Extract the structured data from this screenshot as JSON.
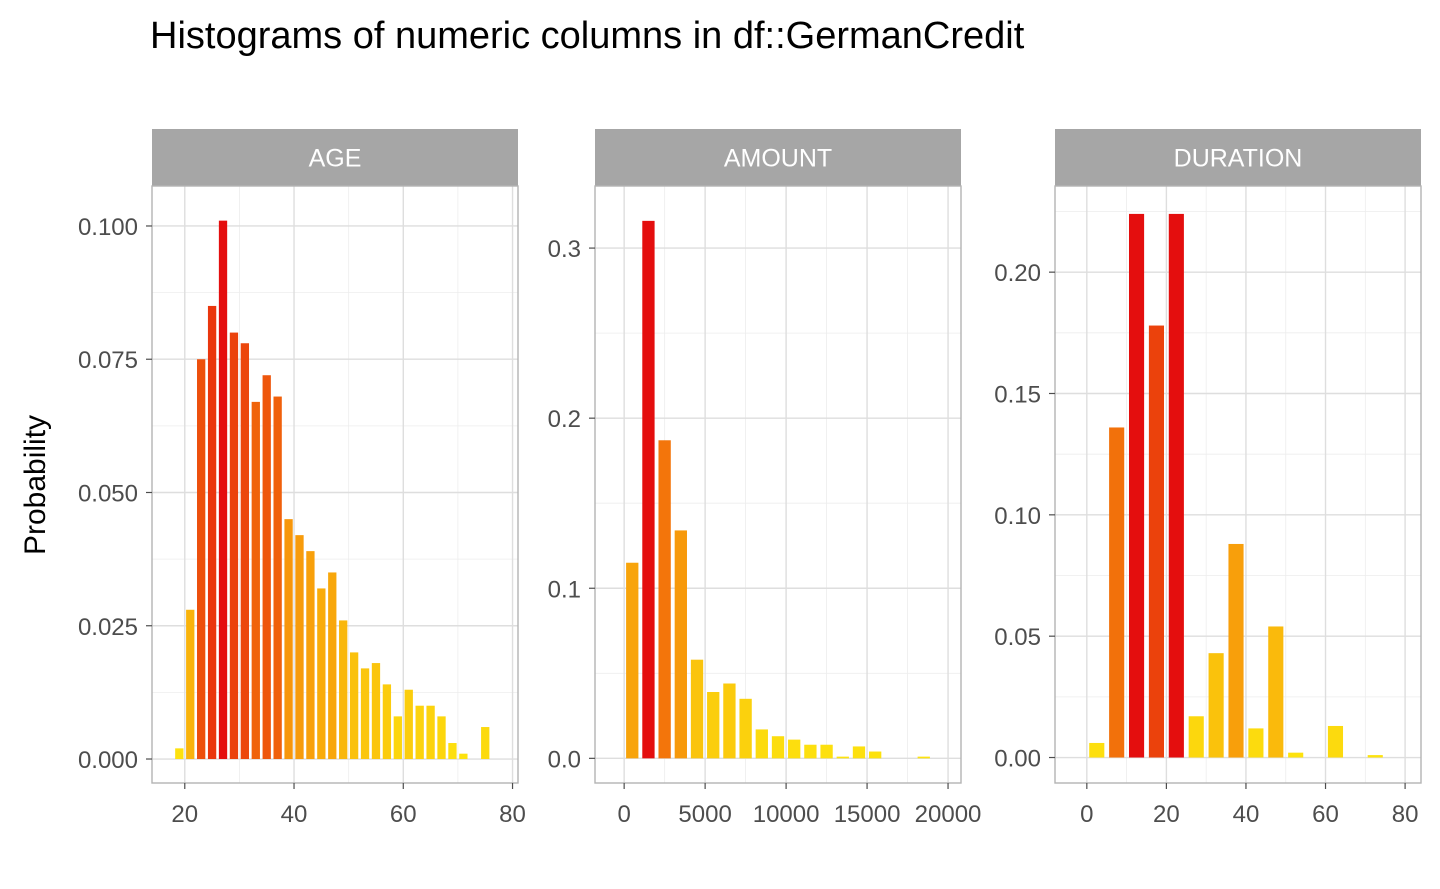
{
  "title": "Histograms of numeric columns in df::GermanCredit",
  "ylabel": "Probability",
  "colors": {
    "strip": "#a6a6a6",
    "low": "#fde40e",
    "mid": "#f68c0a",
    "high": "#e40e0e"
  },
  "chart_data": [
    {
      "type": "bar",
      "panel": "AGE",
      "xlim": [
        14,
        81
      ],
      "ylim": [
        -0.0045,
        0.1075
      ],
      "xticks": [
        20,
        40,
        60,
        80
      ],
      "xtick_labels": [
        "20",
        "40",
        "60",
        "80"
      ],
      "yticks": [
        0,
        0.025,
        0.05,
        0.075,
        0.1
      ],
      "ytick_labels": [
        "0.000",
        "0.025",
        "0.050",
        "0.075",
        "0.100"
      ],
      "bin_width": 2,
      "x": [
        19,
        21,
        23,
        25,
        27,
        29,
        31,
        33,
        35,
        37,
        39,
        41,
        43,
        45,
        47,
        49,
        51,
        53,
        55,
        57,
        59,
        61,
        63,
        65,
        67,
        69,
        71,
        75
      ],
      "values": [
        0.002,
        0.028,
        0.075,
        0.085,
        0.101,
        0.08,
        0.078,
        0.067,
        0.072,
        0.068,
        0.045,
        0.042,
        0.039,
        0.032,
        0.035,
        0.026,
        0.02,
        0.017,
        0.018,
        0.014,
        0.008,
        0.013,
        0.01,
        0.01,
        0.008,
        0.003,
        0.001,
        0.006
      ]
    },
    {
      "type": "bar",
      "panel": "AMOUNT",
      "xlim": [
        -1800,
        20800
      ],
      "ylim": [
        -0.0145,
        0.3365
      ],
      "xticks": [
        0,
        5000,
        10000,
        15000,
        20000
      ],
      "xtick_labels": [
        "0",
        "5000",
        "10000",
        "15000",
        "20000"
      ],
      "yticks": [
        0,
        0.1,
        0.2,
        0.3
      ],
      "ytick_labels": [
        "0.0",
        "0.1",
        "0.2",
        "0.3"
      ],
      "bin_width": 1000,
      "x": [
        500,
        1500,
        2500,
        3500,
        4500,
        5500,
        6500,
        7500,
        8500,
        9500,
        10500,
        11500,
        12500,
        13500,
        14500,
        15500,
        18500
      ],
      "values": [
        0.115,
        0.316,
        0.187,
        0.134,
        0.058,
        0.039,
        0.044,
        0.035,
        0.017,
        0.013,
        0.011,
        0.008,
        0.008,
        0.001,
        0.007,
        0.004,
        0.001
      ]
    },
    {
      "type": "bar",
      "panel": "DURATION",
      "xlim": [
        -8,
        84
      ],
      "ylim": [
        -0.0105,
        0.2355
      ],
      "xticks": [
        0,
        20,
        40,
        60,
        80
      ],
      "xtick_labels": [
        "0",
        "20",
        "40",
        "60",
        "80"
      ],
      "yticks": [
        0,
        0.05,
        0.1,
        0.15,
        0.2
      ],
      "ytick_labels": [
        "0.00",
        "0.05",
        "0.10",
        "0.15",
        "0.20"
      ],
      "bin_width": 5,
      "x": [
        2.5,
        7.5,
        12.5,
        17.5,
        22.5,
        27.5,
        32.5,
        37.5,
        42.5,
        47.5,
        52.5,
        62.5,
        72.5
      ],
      "values": [
        0.006,
        0.136,
        0.224,
        0.178,
        0.224,
        0.017,
        0.043,
        0.088,
        0.012,
        0.054,
        0.002,
        0.013,
        0.001
      ]
    }
  ]
}
